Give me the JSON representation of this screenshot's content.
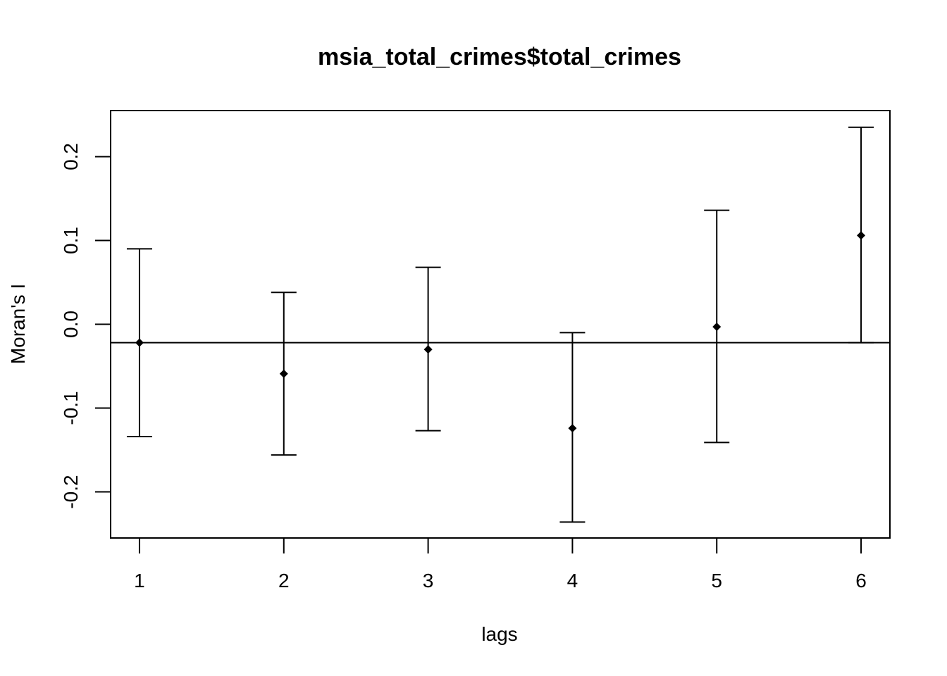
{
  "chart_data": {
    "type": "scatter",
    "title": "msia_total_crimes$total_crimes",
    "xlabel": "lags",
    "ylabel": "Moran's  I",
    "x_ticks": [
      "1",
      "2",
      "3",
      "4",
      "5",
      "6"
    ],
    "y_ticks": [
      "-0.2",
      "-0.1",
      "0.0",
      "0.1",
      "0.2"
    ],
    "y_tick_values": [
      -0.2,
      -0.1,
      0.0,
      0.1,
      0.2
    ],
    "xlim": [
      0.8,
      6.2
    ],
    "ylim": [
      -0.255,
      0.255
    ],
    "reference_line_y": -0.022,
    "series": [
      {
        "x": [
          1,
          2,
          3,
          4,
          5,
          6
        ],
        "y": [
          -0.022,
          -0.059,
          -0.03,
          -0.124,
          -0.003,
          0.106
        ],
        "lower": [
          -0.134,
          -0.156,
          -0.127,
          -0.236,
          -0.141,
          -0.022
        ],
        "upper": [
          0.09,
          0.038,
          0.068,
          -0.01,
          0.136,
          0.235
        ]
      }
    ],
    "grid": false,
    "legend": "none"
  }
}
